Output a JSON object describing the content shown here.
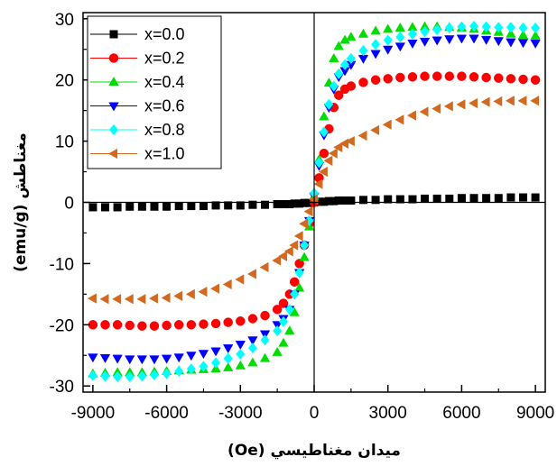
{
  "chart_data": {
    "type": "scatter",
    "xlabel": "(Oe) ميدان مغناطيسي",
    "ylabel": "مغناطش (emu/g)",
    "xlim": [
      -9400,
      9400
    ],
    "ylim": [
      -31,
      31
    ],
    "xticks": [
      -9000,
      -6000,
      -3000,
      0,
      3000,
      6000,
      9000
    ],
    "yticks": [
      -30,
      -20,
      -10,
      0,
      10,
      20,
      30
    ],
    "x_tick_labels": [
      "-9000",
      "-6000",
      "-3000",
      "0",
      "3000",
      "6000",
      "9000"
    ],
    "y_tick_labels": [
      "-30",
      "-20",
      "-10",
      "0",
      "10",
      "20",
      "30"
    ],
    "grid": false,
    "legend_position": "top-left",
    "zero_lines": true,
    "x": [
      -9000,
      -8500,
      -8000,
      -7500,
      -7000,
      -6500,
      -6000,
      -5500,
      -5000,
      -4500,
      -4000,
      -3500,
      -3000,
      -2500,
      -2000,
      -1500,
      -1250,
      -1000,
      -800,
      -600,
      -400,
      -200,
      0,
      200,
      400,
      600,
      800,
      1000,
      1250,
      1500,
      2000,
      2500,
      3000,
      3500,
      4000,
      4500,
      5000,
      5500,
      6000,
      6500,
      7000,
      7500,
      8000,
      8500,
      9000
    ],
    "series": [
      {
        "name": "x=0.0",
        "color": "#000000",
        "marker": "square",
        "values": [
          -0.8,
          -0.8,
          -0.8,
          -0.7,
          -0.7,
          -0.7,
          -0.7,
          -0.6,
          -0.6,
          -0.6,
          -0.5,
          -0.5,
          -0.5,
          -0.4,
          -0.4,
          -0.3,
          -0.3,
          -0.3,
          -0.2,
          -0.2,
          -0.1,
          -0.1,
          0.0,
          0.1,
          0.1,
          0.2,
          0.2,
          0.3,
          0.3,
          0.3,
          0.4,
          0.4,
          0.5,
          0.5,
          0.5,
          0.6,
          0.6,
          0.6,
          0.7,
          0.7,
          0.7,
          0.7,
          0.8,
          0.8,
          0.8
        ]
      },
      {
        "name": "x=0.2",
        "color": "#ff0000",
        "marker": "circle",
        "values": [
          -20.0,
          -20.0,
          -20.0,
          -20.1,
          -20.2,
          -20.2,
          -20.1,
          -20.0,
          -20.0,
          -19.9,
          -19.8,
          -19.6,
          -19.4,
          -19.0,
          -18.5,
          -17.5,
          -16.5,
          -15.0,
          -13.0,
          -10.0,
          -7.0,
          -3.5,
          0.0,
          4.0,
          8.0,
          12.0,
          15.5,
          17.5,
          18.5,
          19.0,
          19.6,
          20.0,
          20.2,
          20.4,
          20.5,
          20.6,
          20.6,
          20.6,
          20.6,
          20.5,
          20.4,
          20.3,
          20.2,
          20.1,
          20.0
        ]
      },
      {
        "name": "x=0.4",
        "color": "#00dd00",
        "marker": "triangle-up",
        "values": [
          -28.0,
          -27.9,
          -27.8,
          -27.8,
          -27.8,
          -27.7,
          -27.6,
          -27.5,
          -27.4,
          -27.3,
          -27.2,
          -27.0,
          -26.7,
          -26.2,
          -25.5,
          -24.5,
          -23.0,
          -21.0,
          -18.0,
          -14.0,
          -9.0,
          -4.0,
          1.0,
          7.0,
          14.0,
          19.5,
          23.5,
          25.5,
          26.5,
          27.0,
          27.5,
          28.0,
          28.3,
          28.5,
          28.6,
          28.7,
          28.7,
          28.6,
          28.5,
          28.3,
          28.0,
          27.8,
          27.5,
          27.3,
          27.2
        ]
      },
      {
        "name": "x=0.6",
        "color": "#0000ff",
        "marker": "triangle-down",
        "values": [
          -25.3,
          -25.4,
          -25.5,
          -25.6,
          -25.6,
          -25.6,
          -25.5,
          -25.3,
          -25.0,
          -24.7,
          -24.3,
          -23.8,
          -23.2,
          -22.5,
          -21.5,
          -20.0,
          -19.0,
          -17.5,
          -15.0,
          -11.5,
          -7.0,
          -3.0,
          1.0,
          6.0,
          11.0,
          15.5,
          18.5,
          20.5,
          21.5,
          22.5,
          23.5,
          24.3,
          25.0,
          25.5,
          26.0,
          26.3,
          26.5,
          26.7,
          26.8,
          26.8,
          26.6,
          26.4,
          26.2,
          26.1,
          26.0
        ]
      },
      {
        "name": "x=0.8",
        "color": "#00ffff",
        "marker": "diamond",
        "values": [
          -28.3,
          -28.4,
          -28.5,
          -28.5,
          -28.4,
          -28.2,
          -28.0,
          -27.6,
          -27.2,
          -26.8,
          -26.2,
          -25.5,
          -24.8,
          -23.8,
          -22.5,
          -21.0,
          -19.5,
          -17.5,
          -15.0,
          -11.5,
          -7.0,
          -3.0,
          1.5,
          6.5,
          11.5,
          16.0,
          19.0,
          21.0,
          22.5,
          23.5,
          24.8,
          25.8,
          26.5,
          27.0,
          27.5,
          27.9,
          28.2,
          28.5,
          28.7,
          28.8,
          28.7,
          28.6,
          28.6,
          28.5,
          28.5
        ]
      },
      {
        "name": "x=1.0",
        "color": "#d2691e",
        "marker": "triangle-left",
        "values": [
          -15.7,
          -15.8,
          -15.8,
          -15.8,
          -15.8,
          -15.7,
          -15.6,
          -15.3,
          -15.0,
          -14.6,
          -14.1,
          -13.4,
          -12.6,
          -11.7,
          -10.6,
          -9.5,
          -8.8,
          -8.0,
          -7.0,
          -5.5,
          -3.5,
          -1.5,
          0.5,
          3.0,
          5.0,
          6.8,
          8.0,
          9.0,
          9.6,
          10.0,
          10.9,
          11.8,
          12.7,
          13.5,
          14.2,
          14.8,
          15.3,
          15.7,
          16.0,
          16.2,
          16.4,
          16.5,
          16.6,
          16.6,
          16.6
        ]
      }
    ]
  }
}
